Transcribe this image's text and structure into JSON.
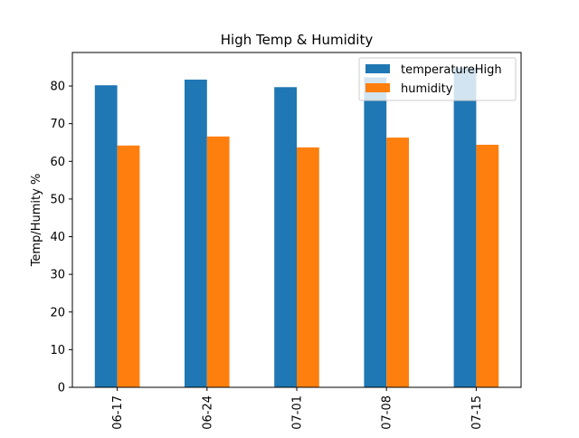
{
  "chart_data": {
    "type": "bar",
    "title": "High Temp & Humidity",
    "xlabel": "",
    "ylabel": "Temp/Humity %",
    "categories": [
      "06-17",
      "06-24",
      "07-01",
      "07-08",
      "07-15"
    ],
    "series": [
      {
        "name": "temperatureHigh",
        "color": "#1f77b4",
        "values": [
          80.2,
          81.7,
          79.7,
          82.3,
          84.8
        ]
      },
      {
        "name": "humidity",
        "color": "#ff7f0e",
        "values": [
          64.2,
          66.6,
          63.7,
          66.3,
          64.4
        ]
      }
    ],
    "ylim": [
      0,
      88.9
    ],
    "yticks": [
      0,
      10,
      20,
      30,
      40,
      50,
      60,
      70,
      80
    ],
    "grid": false,
    "legend_position": "top-right"
  }
}
